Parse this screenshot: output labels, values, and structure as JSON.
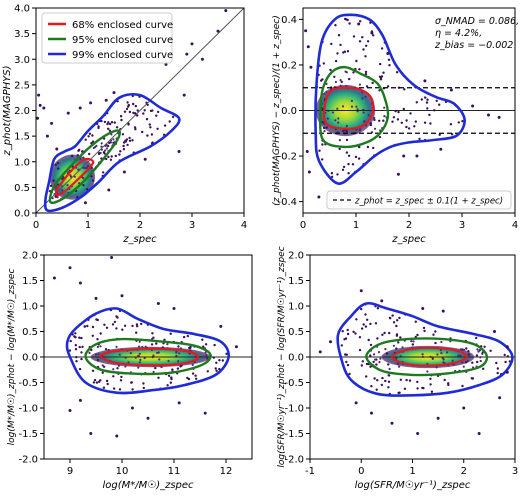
{
  "chart_data": [
    {
      "type": "scatter",
      "title": "",
      "xlabel": "z_spec",
      "ylabel": "z_phot(MAGPHYS)",
      "xlim": [
        0,
        4
      ],
      "ylim": [
        0,
        4
      ],
      "xticks": [
        0,
        1,
        2,
        3,
        4
      ],
      "yticks": [
        0.0,
        0.5,
        1.0,
        1.5,
        2.0,
        2.5,
        3.0,
        3.5,
        4.0
      ],
      "legend": {
        "placement": "top-left",
        "entries": [
          {
            "label": "68% enclosed curve",
            "color": "#e41a1c"
          },
          {
            "label": "95% enclosed curve",
            "color": "#1f7a1f"
          },
          {
            "label": "99% enclosed curve",
            "color": "#1f2bd6"
          }
        ]
      },
      "reference_lines": [
        {
          "kind": "diagonal",
          "from": [
            0,
            0
          ],
          "to": [
            4,
            4
          ]
        }
      ],
      "density_center": [
        0.7,
        0.7
      ],
      "contours": [
        {
          "level": "68%",
          "points": [
            [
              0.4,
              0.35
            ],
            [
              0.55,
              0.42
            ],
            [
              0.8,
              0.65
            ],
            [
              1.0,
              0.85
            ],
            [
              1.1,
              1.0
            ],
            [
              0.95,
              1.05
            ],
            [
              0.75,
              0.9
            ],
            [
              0.5,
              0.6
            ],
            [
              0.4,
              0.45
            ]
          ]
        },
        {
          "level": "95%",
          "points": [
            [
              0.3,
              0.2
            ],
            [
              0.55,
              0.3
            ],
            [
              0.9,
              0.6
            ],
            [
              1.25,
              1.0
            ],
            [
              1.55,
              1.4
            ],
            [
              1.6,
              1.6
            ],
            [
              1.4,
              1.55
            ],
            [
              1.05,
              1.3
            ],
            [
              0.7,
              0.95
            ],
            [
              0.4,
              0.6
            ],
            [
              0.28,
              0.35
            ]
          ]
        },
        {
          "level": "99%",
          "points": [
            [
              0.22,
              0.05
            ],
            [
              0.5,
              0.1
            ],
            [
              0.85,
              0.3
            ],
            [
              1.2,
              0.6
            ],
            [
              1.6,
              1.0
            ],
            [
              2.2,
              1.3
            ],
            [
              2.6,
              1.6
            ],
            [
              2.75,
              1.85
            ],
            [
              2.4,
              2.05
            ],
            [
              2.0,
              2.3
            ],
            [
              1.6,
              2.25
            ],
            [
              1.3,
              1.9
            ],
            [
              1.0,
              1.6
            ],
            [
              0.75,
              1.3
            ],
            [
              0.55,
              1.2
            ],
            [
              0.35,
              1.05
            ],
            [
              0.25,
              0.6
            ],
            [
              0.18,
              0.25
            ]
          ]
        }
      ],
      "outliers": [
        [
          0.05,
          2.3
        ],
        [
          0.08,
          2.1
        ],
        [
          0.15,
          2.05
        ],
        [
          0.03,
          1.85
        ],
        [
          0.22,
          1.5
        ],
        [
          0.3,
          1.75
        ],
        [
          0.4,
          1.25
        ],
        [
          0.62,
          1.95
        ],
        [
          0.85,
          2.05
        ],
        [
          1.05,
          2.15
        ],
        [
          1.35,
          2.2
        ],
        [
          1.5,
          2.35
        ],
        [
          2.9,
          3.1
        ],
        [
          3.0,
          3.3
        ],
        [
          3.2,
          3.0
        ],
        [
          3.65,
          3.95
        ],
        [
          2.75,
          1.2
        ],
        [
          2.85,
          2.3
        ],
        [
          2.1,
          1.05
        ],
        [
          1.7,
          0.8
        ],
        [
          1.4,
          0.45
        ],
        [
          0.95,
          0.2
        ],
        [
          2.5,
          2.9
        ],
        [
          3.5,
          3.55
        ]
      ]
    },
    {
      "type": "scatter",
      "title": "",
      "xlabel": "z_spec",
      "ylabel": "(z_phot(MAGPHYS) − z_spec)/(1 + z_spec)",
      "xlim": [
        0,
        4
      ],
      "ylim": [
        -0.45,
        0.45
      ],
      "xticks": [
        0,
        1,
        2,
        3,
        4
      ],
      "yticks": [
        -0.4,
        -0.2,
        0.0,
        0.2,
        0.4
      ],
      "annotation": [
        "σ_NMAD = 0.086,",
        "η = 4.2%,",
        "z_bias = −0.002"
      ],
      "legend": {
        "placement": "bottom-right",
        "entries": [
          {
            "label": "z_phot = z_spec ± 0.1(1 + z_spec)",
            "style": "dashed"
          }
        ]
      },
      "reference_lines": [
        {
          "kind": "horizontal",
          "y": 0.0,
          "style": "solid"
        },
        {
          "kind": "horizontal",
          "y": 0.1,
          "style": "dashed"
        },
        {
          "kind": "horizontal",
          "y": -0.1,
          "style": "dashed"
        }
      ],
      "density_center": [
        0.8,
        0.0
      ],
      "contours": [
        {
          "level": "68%",
          "points": [
            [
              0.45,
              -0.06
            ],
            [
              0.75,
              -0.08
            ],
            [
              1.1,
              -0.07
            ],
            [
              1.3,
              -0.02
            ],
            [
              1.3,
              0.05
            ],
            [
              1.1,
              0.09
            ],
            [
              0.75,
              0.1
            ],
            [
              0.5,
              0.08
            ],
            [
              0.4,
              0.0
            ]
          ]
        },
        {
          "level": "95%",
          "points": [
            [
              0.38,
              -0.13
            ],
            [
              0.8,
              -0.16
            ],
            [
              1.2,
              -0.14
            ],
            [
              1.45,
              -0.1
            ],
            [
              1.6,
              -0.03
            ],
            [
              1.55,
              0.05
            ],
            [
              1.4,
              0.12
            ],
            [
              1.1,
              0.16
            ],
            [
              0.8,
              0.19
            ],
            [
              0.55,
              0.17
            ],
            [
              0.38,
              0.1
            ],
            [
              0.33,
              0.0
            ]
          ]
        },
        {
          "level": "99%",
          "points": [
            [
              0.3,
              -0.22
            ],
            [
              0.65,
              -0.32
            ],
            [
              1.0,
              -0.27
            ],
            [
              1.35,
              -0.2
            ],
            [
              1.65,
              -0.16
            ],
            [
              2.0,
              -0.14
            ],
            [
              2.45,
              -0.13
            ],
            [
              2.9,
              -0.11
            ],
            [
              3.05,
              -0.04
            ],
            [
              2.85,
              0.03
            ],
            [
              2.5,
              0.06
            ],
            [
              2.1,
              0.11
            ],
            [
              1.75,
              0.2
            ],
            [
              1.5,
              0.33
            ],
            [
              1.25,
              0.4
            ],
            [
              0.9,
              0.42
            ],
            [
              0.6,
              0.4
            ],
            [
              0.35,
              0.3
            ],
            [
              0.25,
              0.1
            ],
            [
              0.24,
              -0.1
            ]
          ]
        }
      ],
      "outliers": [
        [
          0.05,
          0.35
        ],
        [
          0.1,
          0.28
        ],
        [
          0.15,
          0.19
        ],
        [
          0.08,
          -0.18
        ],
        [
          0.12,
          -0.27
        ],
        [
          0.3,
          -0.38
        ],
        [
          0.5,
          -0.36
        ],
        [
          1.05,
          0.38
        ],
        [
          1.3,
          0.34
        ],
        [
          1.8,
          -0.28
        ],
        [
          1.9,
          -0.2
        ],
        [
          2.15,
          -0.2
        ],
        [
          2.3,
          0.13
        ],
        [
          2.8,
          0.09
        ],
        [
          3.2,
          0.02
        ],
        [
          3.5,
          -0.02
        ],
        [
          3.7,
          -0.03
        ],
        [
          1.6,
          0.25
        ],
        [
          2.6,
          -0.17
        ]
      ]
    },
    {
      "type": "scatter",
      "title": "",
      "xlabel": "log(M*/M☉)_zspec",
      "ylabel": "log(M*/M☉)_zphot − log(M*/M☉)_zspec",
      "xlim": [
        8.5,
        12.5
      ],
      "ylim": [
        -2.0,
        2.0
      ],
      "xticks": [
        9,
        10,
        11,
        12
      ],
      "yticks": [
        -2.0,
        -1.5,
        -1.0,
        -0.5,
        0.0,
        0.5,
        1.0,
        1.5,
        2.0
      ],
      "reference_lines": [
        {
          "kind": "horizontal",
          "y": 0.0,
          "style": "solid"
        }
      ],
      "density_center": [
        10.55,
        0.0
      ],
      "contours": [
        {
          "level": "68%",
          "points": [
            [
              9.6,
              0.0
            ],
            [
              9.9,
              -0.12
            ],
            [
              10.5,
              -0.16
            ],
            [
              11.1,
              -0.14
            ],
            [
              11.45,
              -0.03
            ],
            [
              11.3,
              0.1
            ],
            [
              10.7,
              0.16
            ],
            [
              10.0,
              0.13
            ],
            [
              9.7,
              0.08
            ]
          ]
        },
        {
          "level": "95%",
          "points": [
            [
              9.3,
              0.0
            ],
            [
              9.6,
              -0.25
            ],
            [
              10.3,
              -0.33
            ],
            [
              11.0,
              -0.3
            ],
            [
              11.55,
              -0.15
            ],
            [
              11.7,
              0.05
            ],
            [
              11.4,
              0.22
            ],
            [
              10.8,
              0.3
            ],
            [
              10.0,
              0.35
            ],
            [
              9.5,
              0.25
            ]
          ]
        },
        {
          "level": "99%",
          "points": [
            [
              9.0,
              0.0
            ],
            [
              9.3,
              -0.5
            ],
            [
              9.9,
              -0.7
            ],
            [
              10.6,
              -0.65
            ],
            [
              11.2,
              -0.55
            ],
            [
              11.8,
              -0.35
            ],
            [
              12.05,
              0.0
            ],
            [
              11.9,
              0.3
            ],
            [
              11.4,
              0.45
            ],
            [
              10.8,
              0.55
            ],
            [
              10.3,
              0.75
            ],
            [
              9.9,
              0.95
            ],
            [
              9.5,
              0.85
            ],
            [
              9.1,
              0.55
            ],
            [
              8.95,
              0.3
            ]
          ]
        }
      ],
      "outliers": [
        [
          8.7,
          1.55
        ],
        [
          9.2,
          1.45
        ],
        [
          9.0,
          1.75
        ],
        [
          9.8,
          1.95
        ],
        [
          9.5,
          1.15
        ],
        [
          10.0,
          1.2
        ],
        [
          10.7,
          1.05
        ],
        [
          11.0,
          0.95
        ],
        [
          11.9,
          0.6
        ],
        [
          12.2,
          0.2
        ],
        [
          9.0,
          -1.05
        ],
        [
          9.4,
          -1.5
        ],
        [
          9.9,
          -1.55
        ],
        [
          10.2,
          -1.0
        ],
        [
          10.5,
          -1.2
        ],
        [
          11.1,
          -0.9
        ],
        [
          11.6,
          -1.1
        ],
        [
          9.2,
          -0.85
        ]
      ]
    },
    {
      "type": "scatter",
      "title": "",
      "xlabel": "log(SFR/M☉yr⁻¹)_zspec",
      "ylabel": "log(SFR/M☉yr⁻¹)_zphot − log(SFR/M☉yr⁻¹)_zspec",
      "xlim": [
        -1,
        3
      ],
      "ylim": [
        -2.0,
        2.0
      ],
      "xticks": [
        -1,
        0,
        1,
        2,
        3
      ],
      "yticks": [
        -2.0,
        -1.5,
        -1.0,
        -0.5,
        0.0,
        0.5,
        1.0,
        1.5,
        2.0
      ],
      "reference_lines": [
        {
          "kind": "horizontal",
          "y": 0.0,
          "style": "solid"
        }
      ],
      "density_center": [
        1.3,
        0.0
      ],
      "contours": [
        {
          "level": "68%",
          "points": [
            [
              0.6,
              0.0
            ],
            [
              0.85,
              -0.13
            ],
            [
              1.3,
              -0.17
            ],
            [
              1.8,
              -0.12
            ],
            [
              2.05,
              0.0
            ],
            [
              1.85,
              0.13
            ],
            [
              1.3,
              0.18
            ],
            [
              0.85,
              0.13
            ]
          ]
        },
        {
          "level": "95%",
          "points": [
            [
              0.1,
              0.0
            ],
            [
              0.4,
              -0.27
            ],
            [
              1.0,
              -0.35
            ],
            [
              1.7,
              -0.32
            ],
            [
              2.3,
              -0.2
            ],
            [
              2.45,
              0.02
            ],
            [
              2.2,
              0.25
            ],
            [
              1.6,
              0.35
            ],
            [
              0.9,
              0.35
            ],
            [
              0.35,
              0.25
            ]
          ]
        },
        {
          "level": "99%",
          "points": [
            [
              -0.4,
              0.0
            ],
            [
              -0.2,
              -0.45
            ],
            [
              0.3,
              -0.72
            ],
            [
              1.0,
              -0.75
            ],
            [
              1.7,
              -0.7
            ],
            [
              2.3,
              -0.55
            ],
            [
              2.75,
              -0.35
            ],
            [
              2.95,
              0.0
            ],
            [
              2.7,
              0.3
            ],
            [
              2.2,
              0.45
            ],
            [
              1.5,
              0.6
            ],
            [
              1.0,
              0.8
            ],
            [
              0.5,
              0.95
            ],
            [
              0.1,
              1.05
            ],
            [
              -0.2,
              0.8
            ],
            [
              -0.45,
              0.45
            ]
          ]
        }
      ],
      "outliers": [
        [
          -0.6,
          0.3
        ],
        [
          -0.8,
          0.1
        ],
        [
          0.0,
          1.3
        ],
        [
          0.4,
          1.1
        ],
        [
          1.2,
          0.95
        ],
        [
          1.6,
          0.9
        ],
        [
          2.6,
          0.5
        ],
        [
          2.85,
          0.2
        ],
        [
          2.85,
          -0.3
        ],
        [
          0.2,
          -1.1
        ],
        [
          0.6,
          -1.3
        ],
        [
          1.1,
          -1.5
        ],
        [
          1.5,
          -1.2
        ],
        [
          2.0,
          -1.0
        ],
        [
          2.3,
          -1.5
        ],
        [
          -0.1,
          -0.9
        ],
        [
          2.7,
          -0.8
        ]
      ]
    }
  ]
}
